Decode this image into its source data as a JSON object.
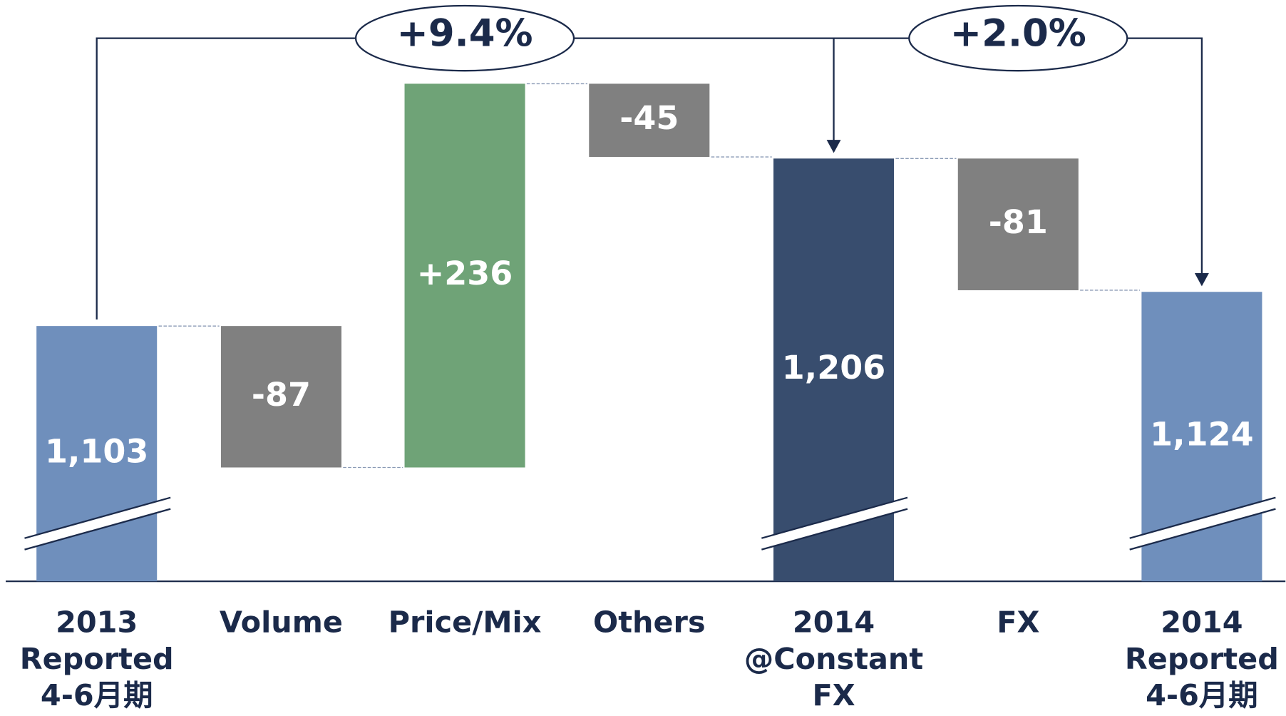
{
  "chart_data": {
    "type": "waterfall",
    "categories": [
      [
        "2013",
        "Reported",
        "4-6月期"
      ],
      [
        "Volume"
      ],
      [
        "Price/Mix"
      ],
      [
        "Others"
      ],
      [
        "2014",
        "@Constant",
        "FX"
      ],
      [
        "FX"
      ],
      [
        "2014",
        "Reported",
        "4-6月期"
      ]
    ],
    "values": [
      1103,
      -87,
      236,
      -45,
      1206,
      -81,
      1124
    ],
    "value_labels": [
      "1,103",
      "-87",
      "+236",
      "-45",
      "1,206",
      "-81",
      "1,124"
    ],
    "measure": [
      "absolute",
      "relative",
      "relative",
      "relative",
      "absolute",
      "relative",
      "absolute"
    ],
    "colors": [
      "#6f8fbc",
      "#808080",
      "#6fa377",
      "#808080",
      "#384d6e",
      "#808080",
      "#6f8fbc"
    ],
    "ylim": [
      946,
      1303.5
    ],
    "annotations": [
      "+9.4%",
      "+2.0%"
    ]
  }
}
